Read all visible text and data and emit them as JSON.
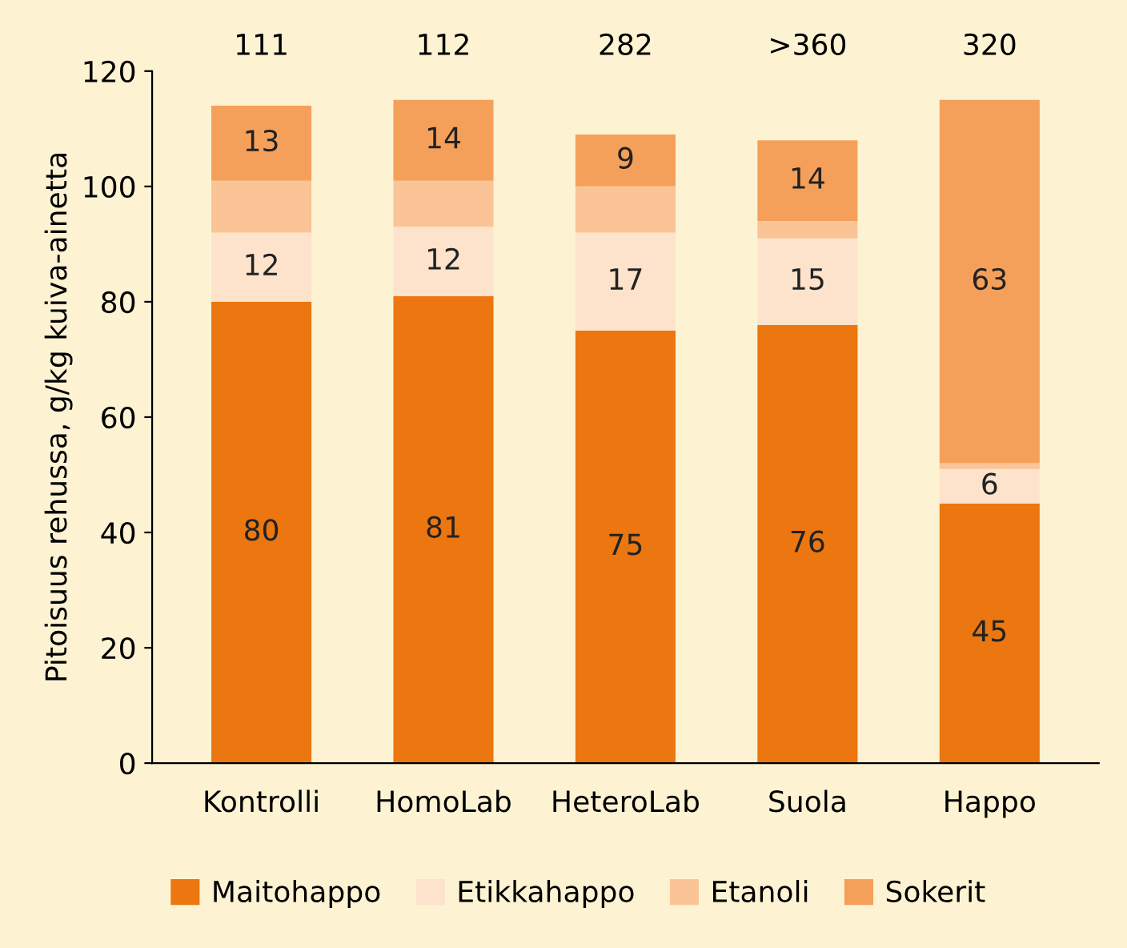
{
  "chart_data": {
    "type": "bar",
    "stacked": true,
    "ylabel": "Pitoisuus rehussa, g/kg kuiva-ainetta",
    "categories": [
      "Kontrolli",
      "HomoLab",
      "HeteroLab",
      "Suola",
      "Happo"
    ],
    "series": [
      {
        "name": "Maitohappo",
        "color": "#ec760f",
        "values": [
          80,
          81,
          75,
          76,
          45
        ],
        "value_labels": [
          "80",
          "81",
          "75",
          "76",
          "45"
        ]
      },
      {
        "name": "Etikkahappo",
        "color": "#fde3cc",
        "values": [
          12,
          12,
          17,
          15,
          6
        ],
        "value_labels": [
          "12",
          "12",
          "17",
          "15",
          "6"
        ]
      },
      {
        "name": "Etanoli",
        "color": "#fac497",
        "values": [
          9,
          8,
          8,
          3,
          1
        ],
        "value_labels": [
          null,
          null,
          null,
          null,
          null
        ]
      },
      {
        "name": "Sokerit",
        "color": "#f5a05a",
        "values": [
          13,
          14,
          9,
          14,
          63
        ],
        "value_labels": [
          "13",
          "14",
          "9",
          "14",
          "63"
        ]
      }
    ],
    "annotations": [
      "111",
      "112",
      "282",
      ">360",
      "320"
    ],
    "ylim": [
      0,
      120
    ],
    "yticks": [
      0,
      20,
      40,
      60,
      80,
      100,
      120
    ],
    "grid": false,
    "legend": "bottom"
  }
}
